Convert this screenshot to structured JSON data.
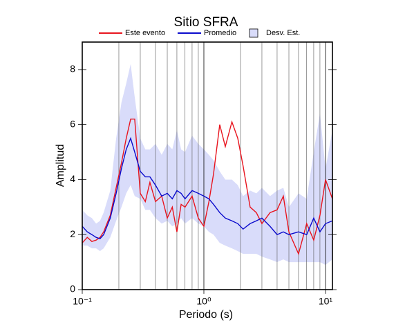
{
  "chart_data": {
    "type": "line",
    "title": "Sitio SFRA",
    "xlabel": "Periodo (s)",
    "ylabel": "Amplitud",
    "xscale": "log",
    "xlim": [
      0.1,
      11.4
    ],
    "ylim": [
      0,
      9
    ],
    "xticks": [
      {
        "value": 0.1,
        "label": "10⁻¹"
      },
      {
        "value": 1,
        "label": "10⁰"
      },
      {
        "value": 10,
        "label": "10¹"
      }
    ],
    "xgrid": [
      0.2,
      0.3,
      0.4,
      0.5,
      0.6,
      0.7,
      0.8,
      0.9,
      2,
      3,
      4,
      5,
      6,
      7,
      8,
      9
    ],
    "yticks": [
      0,
      2,
      4,
      6,
      8
    ],
    "legend": "top",
    "x": [
      0.1,
      0.11,
      0.12,
      0.13,
      0.14,
      0.15,
      0.17,
      0.19,
      0.21,
      0.23,
      0.25,
      0.27,
      0.3,
      0.33,
      0.36,
      0.4,
      0.45,
      0.5,
      0.55,
      0.6,
      0.65,
      0.7,
      0.8,
      0.9,
      1.0,
      1.1,
      1.2,
      1.35,
      1.5,
      1.7,
      1.9,
      2.1,
      2.4,
      2.7,
      3.0,
      3.5,
      4.0,
      4.5,
      5.0,
      6.0,
      7.0,
      8.0,
      9.0,
      10,
      11.4
    ],
    "series": [
      {
        "name": "Este evento",
        "color": "#e8141e",
        "values": [
          1.7,
          1.9,
          1.75,
          1.8,
          1.9,
          2.1,
          2.7,
          3.7,
          4.6,
          5.5,
          6.2,
          6.2,
          3.5,
          3.2,
          3.9,
          3.2,
          3.4,
          2.6,
          3.0,
          2.1,
          3.1,
          3.0,
          3.4,
          2.6,
          2.3,
          3.2,
          4.2,
          6.0,
          5.2,
          6.1,
          5.5,
          4.5,
          3.0,
          2.8,
          2.4,
          2.8,
          2.9,
          3.4,
          2.1,
          1.3,
          2.4,
          1.8,
          2.7,
          4.0,
          3.3
        ]
      },
      {
        "name": "Promedio",
        "color": "#0a0acc",
        "values": [
          2.3,
          2.1,
          2.0,
          1.9,
          1.85,
          2.0,
          2.6,
          3.5,
          4.4,
          5.1,
          5.5,
          5.0,
          4.3,
          4.1,
          4.1,
          3.8,
          3.4,
          3.5,
          3.3,
          3.6,
          3.5,
          3.3,
          3.6,
          3.5,
          3.4,
          3.3,
          3.1,
          2.8,
          2.6,
          2.5,
          2.4,
          2.2,
          2.4,
          2.5,
          2.6,
          2.3,
          2.0,
          2.1,
          2.0,
          2.1,
          2.0,
          2.6,
          2.1,
          2.4,
          2.5
        ]
      },
      {
        "name": "Desv. Est.",
        "color": "#d9dcfa",
        "upper": [
          2.9,
          2.7,
          2.6,
          2.4,
          2.5,
          2.8,
          3.6,
          5.5,
          6.8,
          7.5,
          8.2,
          7.0,
          5.5,
          5.1,
          5.1,
          5.3,
          4.9,
          5.3,
          5.1,
          5.8,
          5.1,
          5.0,
          5.6,
          5.3,
          5.1,
          4.9,
          4.7,
          4.3,
          4.0,
          4.0,
          3.8,
          3.4,
          3.6,
          3.5,
          3.7,
          3.4,
          3.6,
          3.7,
          3.0,
          3.5,
          3.3,
          5.0,
          6.4,
          4.4,
          5.8
        ],
        "lower": [
          1.6,
          1.6,
          1.5,
          1.5,
          1.4,
          1.5,
          1.9,
          2.5,
          3.0,
          3.5,
          3.8,
          3.4,
          3.3,
          2.9,
          2.9,
          2.6,
          2.4,
          2.5,
          2.3,
          2.4,
          2.6,
          2.4,
          2.6,
          2.4,
          2.3,
          2.1,
          2.0,
          1.7,
          1.6,
          1.5,
          1.4,
          1.3,
          1.3,
          1.3,
          1.2,
          1.1,
          1.0,
          1.1,
          1.0,
          1.0,
          1.0,
          1.0,
          1.0,
          0.9,
          1.1
        ]
      }
    ]
  }
}
